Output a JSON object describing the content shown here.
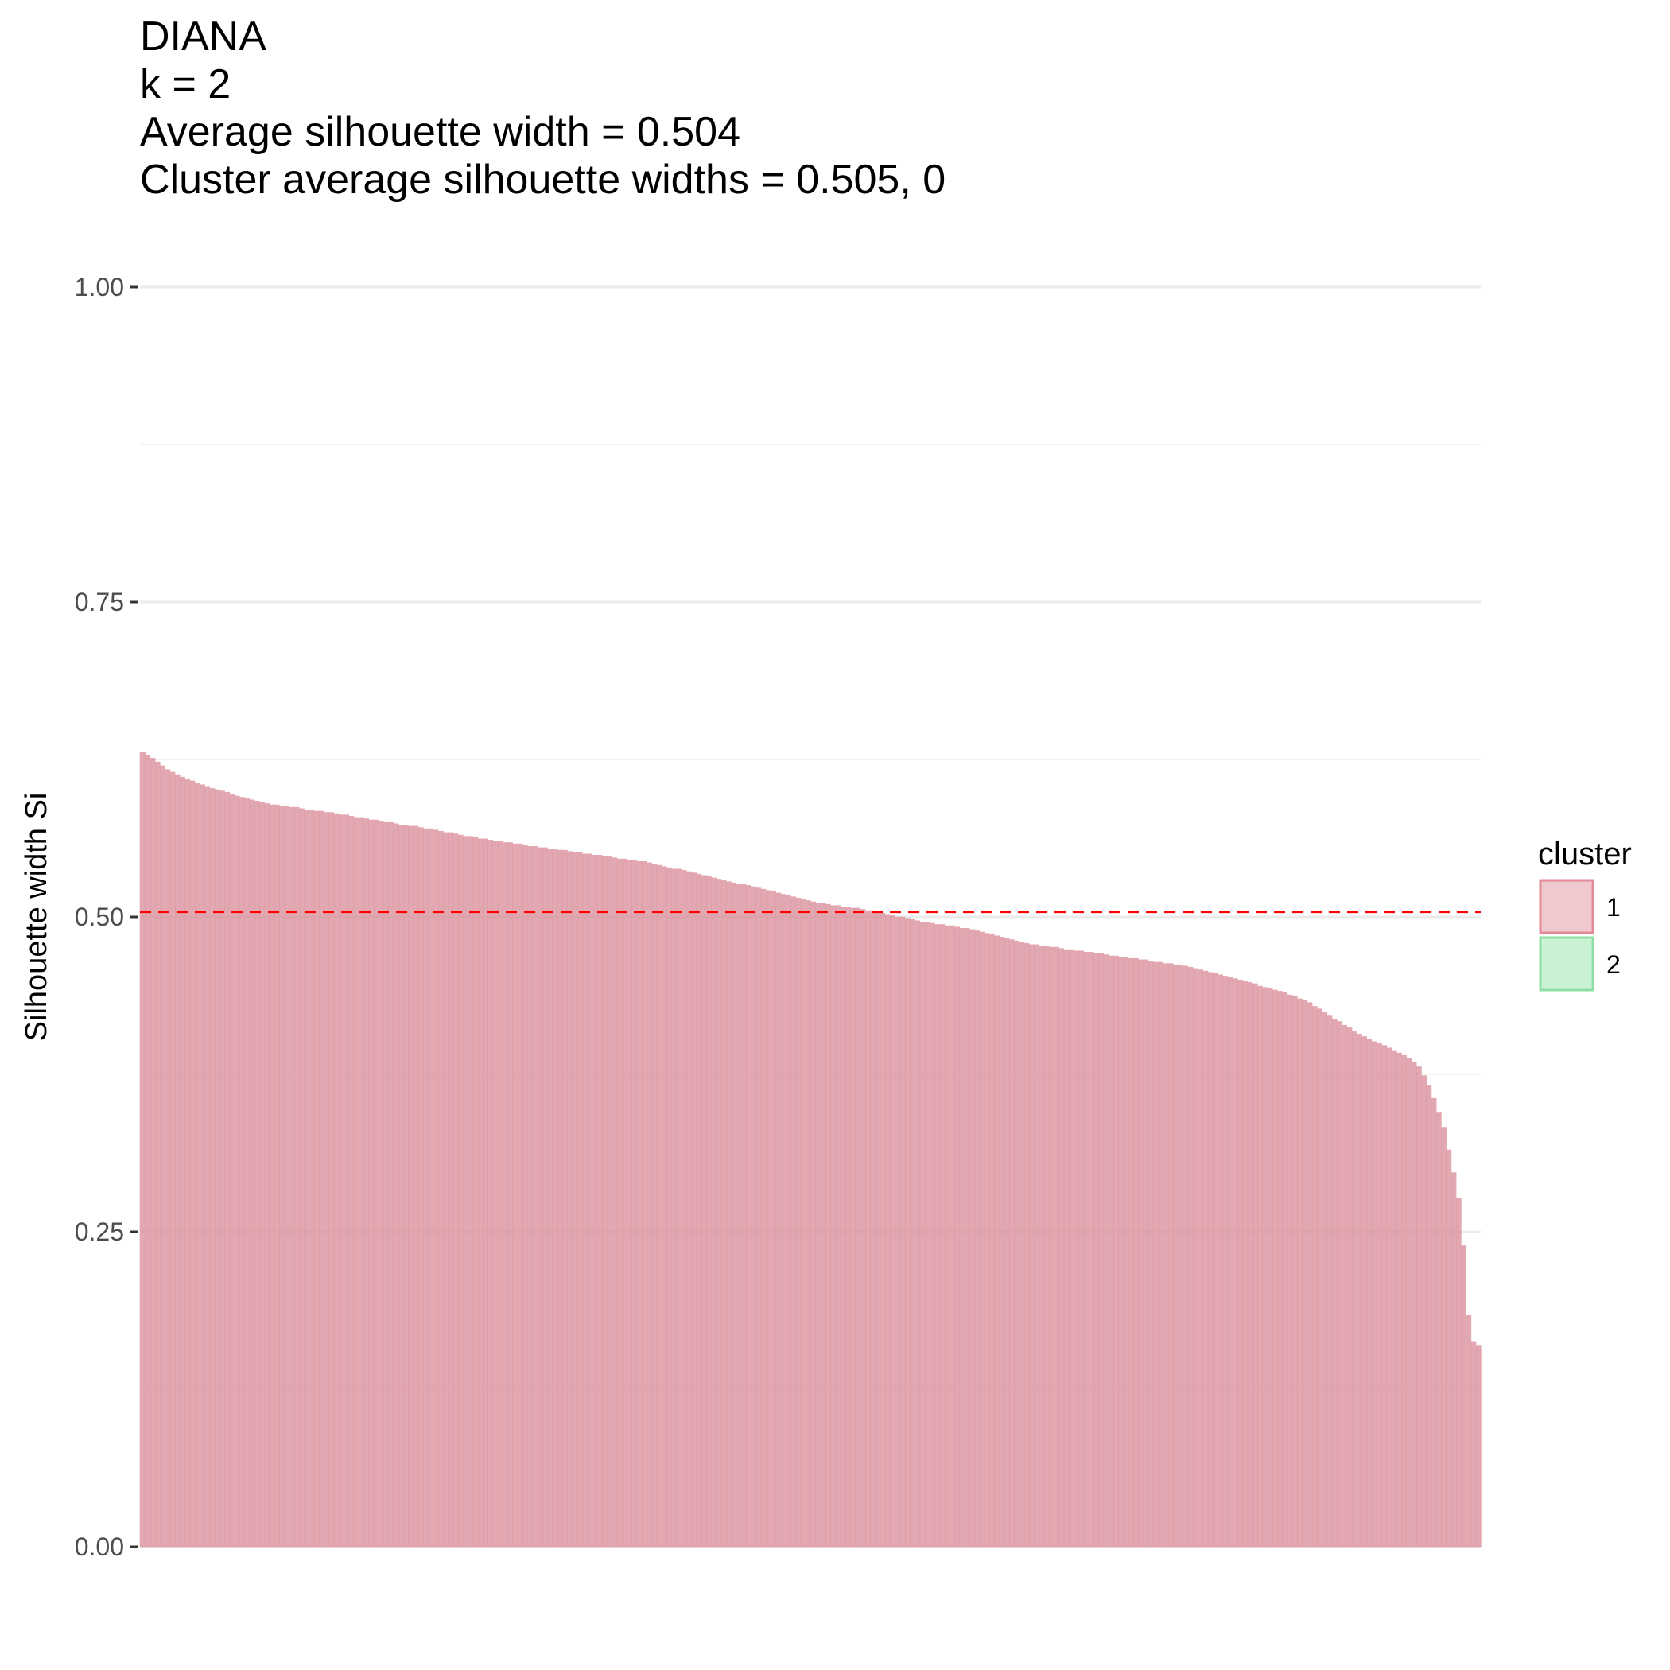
{
  "title_lines": [
    "DIANA",
    "k = 2",
    "Average silhouette width = 0.504",
    "Cluster average silhouette widths = 0.505, 0"
  ],
  "chart_data": {
    "type": "bar",
    "title": "DIANA\nk = 2\nAverage silhouette width = 0.504\nCluster average silhouette widths = 0.505, 0",
    "xlabel": "",
    "ylabel": "Silhouette width Si",
    "ylim": [
      0,
      1
    ],
    "y_ticks": [
      "0.00",
      "0.25",
      "0.50",
      "0.75",
      "1.00"
    ],
    "grid": true,
    "reference_line": {
      "y": 0.504,
      "style": "dashed",
      "color": "#ff0000"
    },
    "legend": {
      "title": "cluster",
      "position": "right",
      "entries": [
        {
          "label": "1",
          "fill": "#F0C9CE",
          "stroke": "#E28A97"
        },
        {
          "label": "2",
          "fill": "#C9F2D3",
          "stroke": "#8EDFA3"
        }
      ]
    },
    "series": [
      {
        "cluster": "1",
        "color": "#D88B97",
        "profile_points": [
          [
            0,
            0.632
          ],
          [
            0.01,
            0.625
          ],
          [
            0.02,
            0.617
          ],
          [
            0.04,
            0.607
          ],
          [
            0.06,
            0.6
          ],
          [
            0.08,
            0.594
          ],
          [
            0.1,
            0.589
          ],
          [
            0.14,
            0.583
          ],
          [
            0.18,
            0.576
          ],
          [
            0.22,
            0.569
          ],
          [
            0.26,
            0.561
          ],
          [
            0.3,
            0.555
          ],
          [
            0.34,
            0.549
          ],
          [
            0.38,
            0.543
          ],
          [
            0.42,
            0.533
          ],
          [
            0.46,
            0.523
          ],
          [
            0.5,
            0.512
          ],
          [
            0.54,
            0.506
          ],
          [
            0.58,
            0.497
          ],
          [
            0.62,
            0.49
          ],
          [
            0.64,
            0.485
          ],
          [
            0.66,
            0.479
          ],
          [
            0.7,
            0.473
          ],
          [
            0.74,
            0.467
          ],
          [
            0.78,
            0.461
          ],
          [
            0.82,
            0.45
          ],
          [
            0.85,
            0.441
          ],
          [
            0.87,
            0.433
          ],
          [
            0.89,
            0.42
          ],
          [
            0.91,
            0.406
          ],
          [
            0.93,
            0.397
          ],
          [
            0.945,
            0.389
          ],
          [
            0.955,
            0.38
          ],
          [
            0.962,
            0.364
          ],
          [
            0.968,
            0.347
          ],
          [
            0.973,
            0.33
          ],
          [
            0.978,
            0.305
          ],
          [
            0.983,
            0.28
          ],
          [
            0.987,
            0.24
          ],
          [
            0.991,
            0.18
          ],
          [
            0.995,
            0.16
          ],
          [
            1.0,
            0.16
          ]
        ]
      }
    ]
  }
}
